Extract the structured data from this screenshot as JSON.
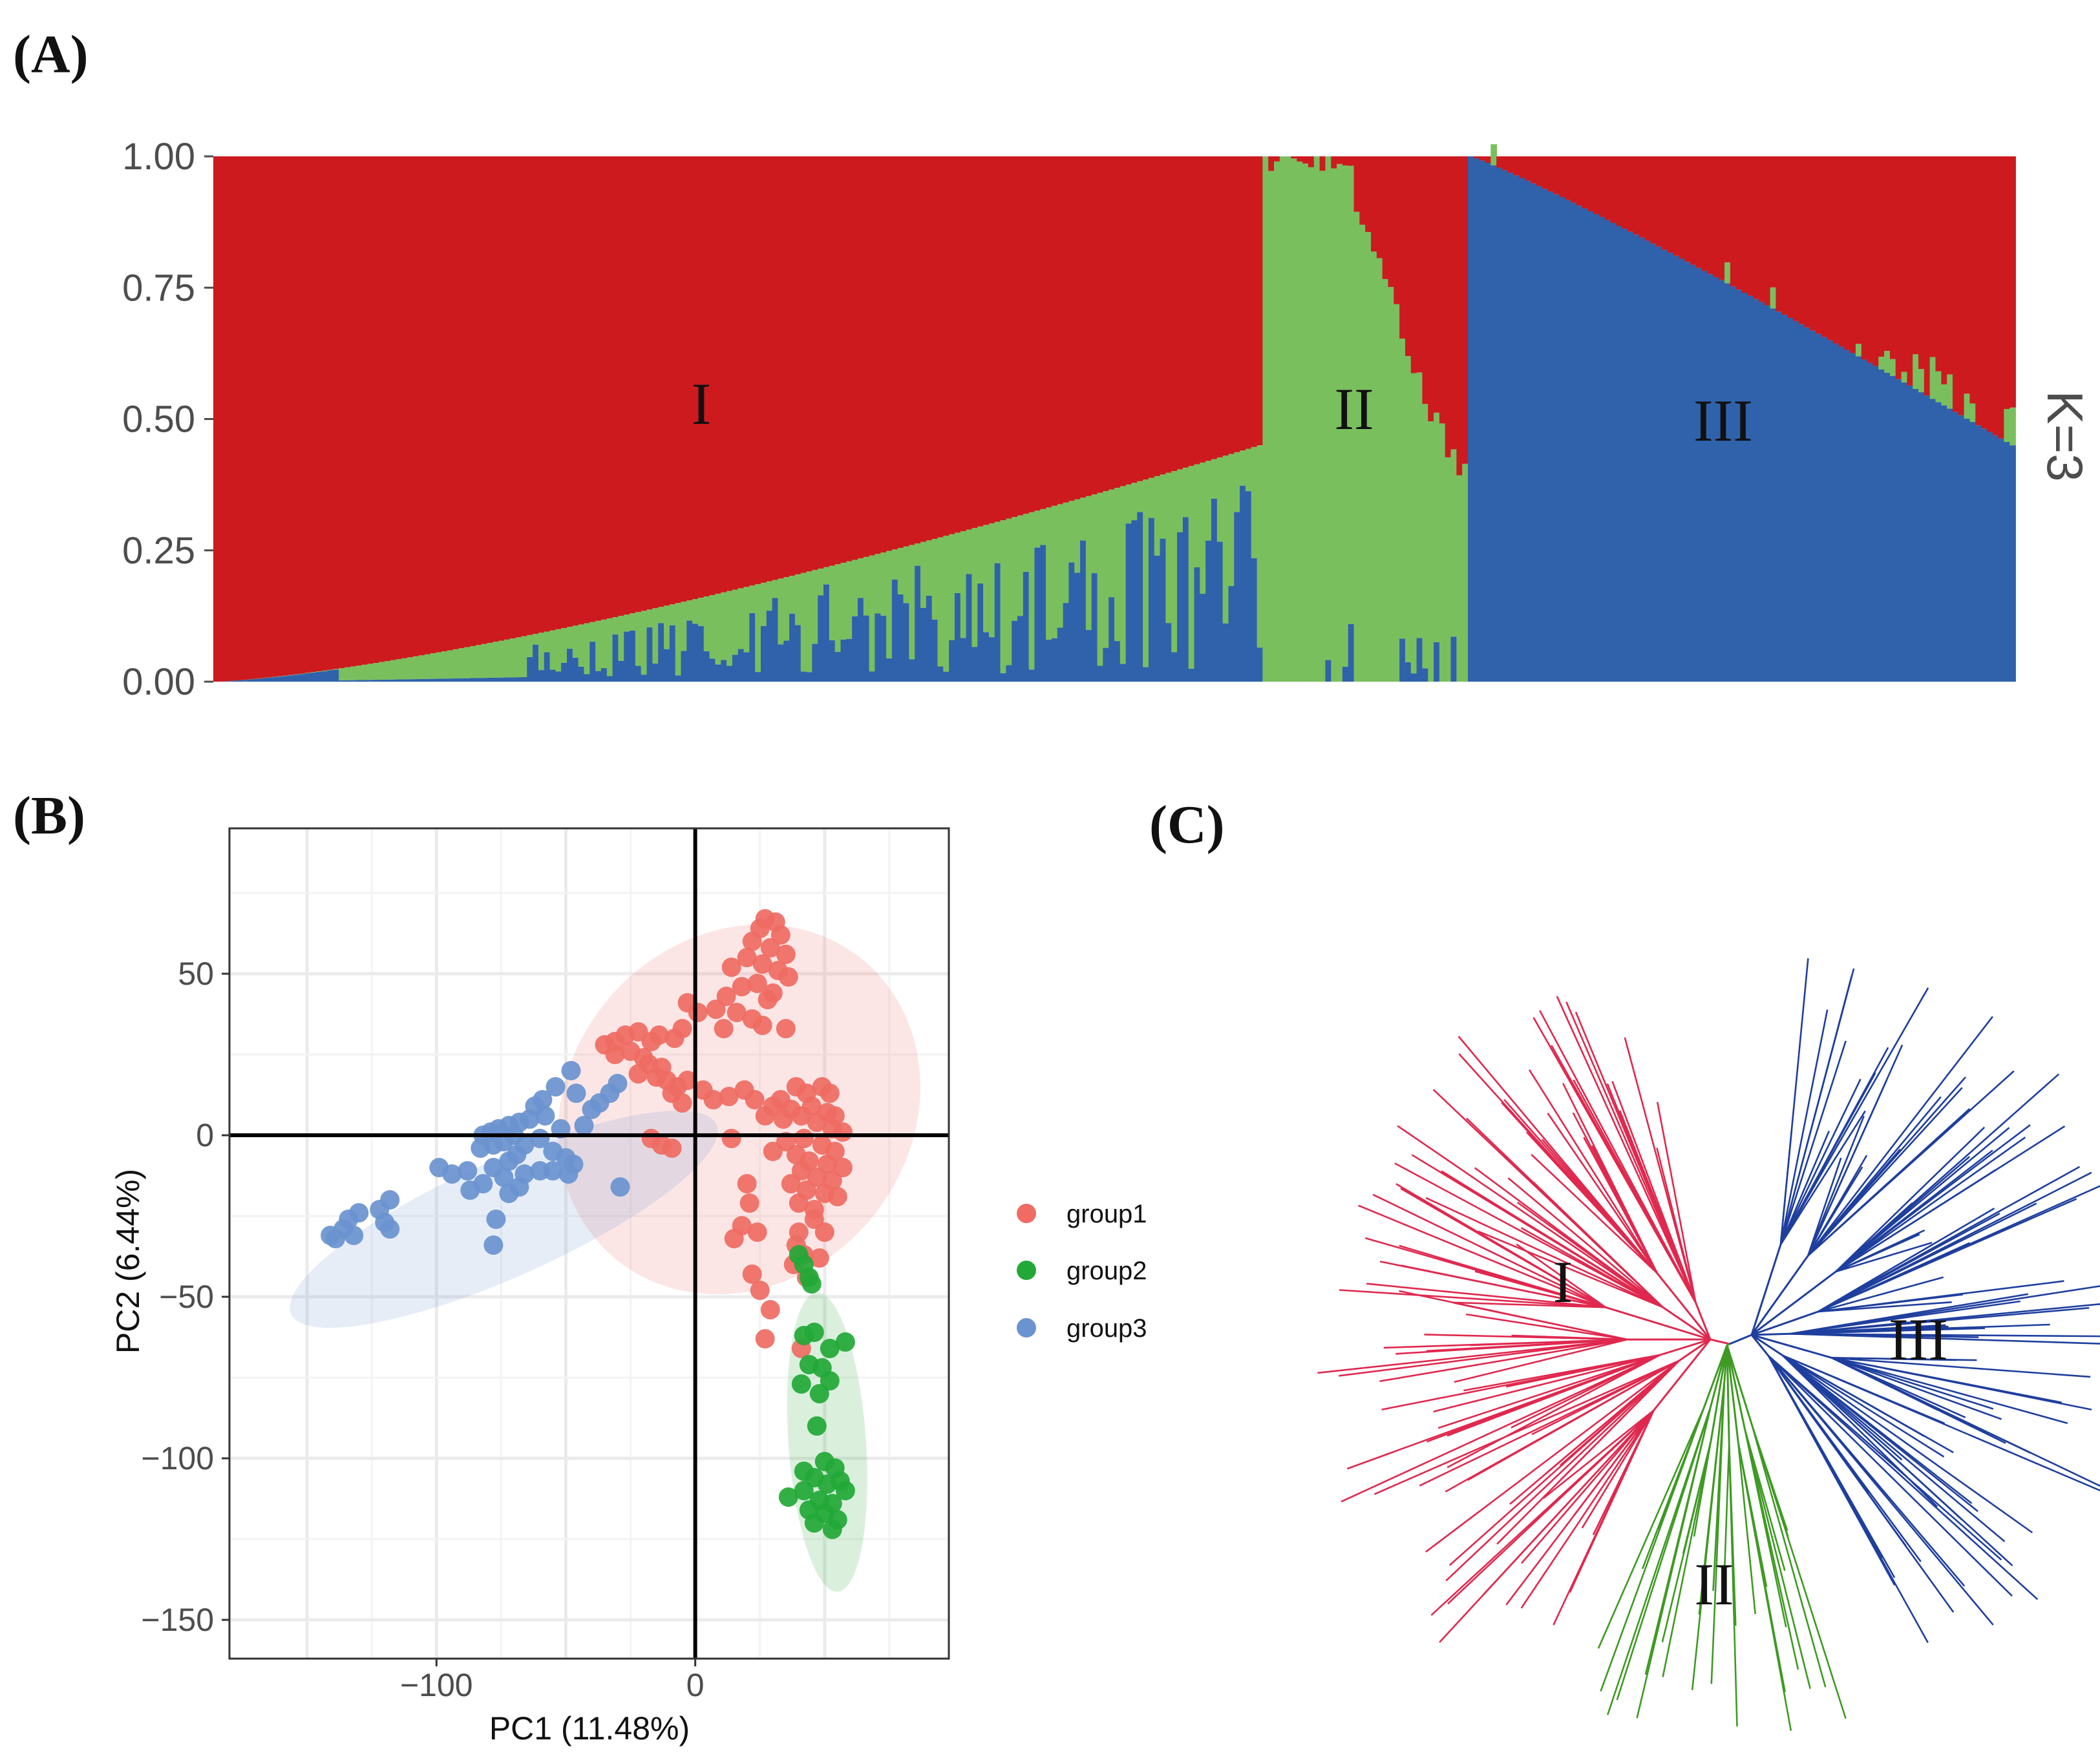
{
  "panels": {
    "a_label": "(A)",
    "b_label": "(B)",
    "c_label": "(C)"
  },
  "colors": {
    "cluster1": "#cc1a1f",
    "cluster2": "#7abf5e",
    "cluster3": "#2f62ab",
    "group1": "#ef6b63",
    "group2": "#22a836",
    "group3": "#6a93cf",
    "tree1": "#e0284e",
    "tree2": "#3e9a22",
    "tree3": "#1f3f9e"
  },
  "chart_data": [
    {
      "id": "structure",
      "type": "bar",
      "stacked": true,
      "title": "",
      "k_label": "K=3",
      "ylim": [
        0,
        1
      ],
      "yticks": [
        {
          "value": 0,
          "label": "0.00"
        },
        {
          "value": 0.25,
          "label": "0.25"
        },
        {
          "value": 0.5,
          "label": "0.50"
        },
        {
          "value": 0.75,
          "label": "0.75"
        },
        {
          "value": 1,
          "label": "1.00"
        }
      ],
      "sample_counts": {
        "group1": 184,
        "group2": 36,
        "group3": 96
      },
      "group_labels": [
        {
          "label": "I",
          "group": "group1"
        },
        {
          "label": "II",
          "group": "group2"
        },
        {
          "label": "III",
          "group": "group3"
        }
      ],
      "series_order": [
        "blue (bottom)",
        "green (middle)",
        "red (top)"
      ]
    },
    {
      "id": "pca",
      "type": "scatter",
      "xlabel": "PC1 (11.48%)",
      "ylabel": "PC2 (6.44%)",
      "xlim": [
        -180,
        98
      ],
      "ylim": [
        -162,
        95
      ],
      "xticks": [
        {
          "value": -100,
          "label": "−100"
        },
        {
          "value": 0,
          "label": "0"
        }
      ],
      "yticks": [
        {
          "value": 50,
          "label": "50"
        },
        {
          "value": 0,
          "label": "0"
        },
        {
          "value": -50,
          "label": "−50"
        },
        {
          "value": -100,
          "label": "−100"
        },
        {
          "value": -150,
          "label": "−150"
        }
      ],
      "legend": [
        {
          "name": "group1",
          "label": "group1"
        },
        {
          "name": "group2",
          "label": "group2"
        },
        {
          "name": "group3",
          "label": "group3"
        }
      ],
      "ellipses": [
        {
          "group": "group1",
          "cx": 17,
          "cy": 8,
          "rx": 75,
          "ry": 53,
          "angle_deg": 50
        },
        {
          "group": "group2",
          "cx": 51,
          "cy": -95,
          "rx": 58,
          "ry": 12,
          "angle_deg": -86
        },
        {
          "group": "group3",
          "cx": -74,
          "cy": -26,
          "rx": 90,
          "ry": 18,
          "angle_deg": 24
        }
      ],
      "series": [
        {
          "name": "group1",
          "points": [
            [
              27,
              67
            ],
            [
              31,
              66
            ],
            [
              25,
              64
            ],
            [
              33,
              62
            ],
            [
              22,
              60
            ],
            [
              29,
              58
            ],
            [
              35,
              56
            ],
            [
              20,
              55
            ],
            [
              26,
              53
            ],
            [
              32,
              51
            ],
            [
              36,
              49
            ],
            [
              14,
              52
            ],
            [
              24,
              47
            ],
            [
              18,
              46
            ],
            [
              30,
              44
            ],
            [
              12,
              43
            ],
            [
              28,
              42
            ],
            [
              -3,
              41
            ],
            [
              1,
              38
            ],
            [
              8,
              39
            ],
            [
              16,
              38
            ],
            [
              22,
              36
            ],
            [
              26,
              34
            ],
            [
              35,
              33
            ],
            [
              11,
              33
            ],
            [
              -5,
              33
            ],
            [
              -8,
              30
            ],
            [
              -14,
              31
            ],
            [
              -17,
              29
            ],
            [
              -22,
              32
            ],
            [
              -27,
              31
            ],
            [
              -31,
              29
            ],
            [
              -35,
              28
            ],
            [
              -31,
              25
            ],
            [
              -25,
              26
            ],
            [
              -20,
              24
            ],
            [
              -18,
              22
            ],
            [
              -13,
              21
            ],
            [
              -22,
              19
            ],
            [
              -15,
              18
            ],
            [
              -11,
              17
            ],
            [
              -7,
              15
            ],
            [
              -3,
              17
            ],
            [
              -9,
              13
            ],
            [
              -5,
              10
            ],
            [
              3,
              14
            ],
            [
              7,
              11
            ],
            [
              13,
              12
            ],
            [
              19,
              14
            ],
            [
              23,
              11
            ],
            [
              39,
              15
            ],
            [
              43,
              13
            ],
            [
              49,
              15
            ],
            [
              52,
              13
            ],
            [
              33,
              11
            ],
            [
              30,
              9
            ],
            [
              37,
              8
            ],
            [
              45,
              9
            ],
            [
              51,
              7
            ],
            [
              54,
              6
            ],
            [
              27,
              6
            ],
            [
              34,
              5
            ],
            [
              41,
              6
            ],
            [
              47,
              4
            ],
            [
              53,
              2
            ],
            [
              57,
              1
            ],
            [
              35,
              -2
            ],
            [
              42,
              -1
            ],
            [
              49,
              -3
            ],
            [
              54,
              -5
            ],
            [
              39,
              -6
            ],
            [
              44,
              -8
            ],
            [
              51,
              -9
            ],
            [
              57,
              -10
            ],
            [
              41,
              -11
            ],
            [
              47,
              -13
            ],
            [
              53,
              -14
            ],
            [
              37,
              -15
            ],
            [
              43,
              -17
            ],
            [
              50,
              -18
            ],
            [
              55,
              -19
            ],
            [
              40,
              -21
            ],
            [
              46,
              -23
            ],
            [
              -17,
              -1
            ],
            [
              -13,
              -3
            ],
            [
              -9,
              -4
            ],
            [
              14,
              -1
            ],
            [
              30,
              -5
            ],
            [
              20,
              -15
            ],
            [
              21,
              -21
            ],
            [
              18,
              -28
            ],
            [
              46,
              -26
            ],
            [
              40,
              -30
            ],
            [
              50,
              -30
            ],
            [
              15,
              -32
            ],
            [
              24,
              -30
            ],
            [
              39,
              -34
            ],
            [
              42,
              -37
            ],
            [
              48,
              -38
            ],
            [
              22,
              -43
            ],
            [
              25,
              -48
            ],
            [
              29,
              -54
            ],
            [
              27,
              -63
            ],
            [
              41,
              -66
            ],
            [
              43,
              -44
            ],
            [
              38,
              -40
            ]
          ]
        },
        {
          "name": "group2",
          "points": [
            [
              42,
              -40
            ],
            [
              44,
              -44
            ],
            [
              40,
              -37
            ],
            [
              45,
              -46
            ],
            [
              42,
              -62
            ],
            [
              46,
              -61
            ],
            [
              52,
              -66
            ],
            [
              58,
              -64
            ],
            [
              44,
              -71
            ],
            [
              49,
              -72
            ],
            [
              41,
              -77
            ],
            [
              48,
              -80
            ],
            [
              52,
              -76
            ],
            [
              47,
              -90
            ],
            [
              50,
              -101
            ],
            [
              54,
              -103
            ],
            [
              46,
              -106
            ],
            [
              51,
              -108
            ],
            [
              56,
              -107
            ],
            [
              58,
              -110
            ],
            [
              42,
              -110
            ],
            [
              36,
              -112
            ],
            [
              48,
              -113
            ],
            [
              53,
              -114
            ],
            [
              44,
              -116
            ],
            [
              50,
              -117
            ],
            [
              55,
              -119
            ],
            [
              46,
              -120
            ],
            [
              53,
              -122
            ],
            [
              42,
              -104
            ]
          ]
        },
        {
          "name": "group3",
          "points": [
            [
              -48,
              20
            ],
            [
              -46,
              13
            ],
            [
              -54,
              15
            ],
            [
              -59,
              11
            ],
            [
              -62,
              9
            ],
            [
              -58,
              6
            ],
            [
              -64,
              5
            ],
            [
              -68,
              4
            ],
            [
              -72,
              3
            ],
            [
              -76,
              2
            ],
            [
              -79,
              1
            ],
            [
              -82,
              0
            ],
            [
              -70,
              0
            ],
            [
              -60,
              -1
            ],
            [
              -74,
              -2
            ],
            [
              -78,
              -3
            ],
            [
              -66,
              -3
            ],
            [
              -83,
              -4
            ],
            [
              -69,
              -6
            ],
            [
              -55,
              -5
            ],
            [
              -50,
              -7
            ],
            [
              -47,
              -9
            ],
            [
              -72,
              -8
            ],
            [
              -78,
              -10
            ],
            [
              -88,
              -11
            ],
            [
              -94,
              -12
            ],
            [
              -99,
              -10
            ],
            [
              -60,
              -11
            ],
            [
              -66,
              -12
            ],
            [
              -74,
              -13
            ],
            [
              -82,
              -15
            ],
            [
              -87,
              -17
            ],
            [
              -55,
              -11
            ],
            [
              -49,
              -12
            ],
            [
              -68,
              -16
            ],
            [
              -72,
              -18
            ],
            [
              -118,
              -20
            ],
            [
              -122,
              -23
            ],
            [
              -120,
              -27
            ],
            [
              -118,
              -29
            ],
            [
              -130,
              -24
            ],
            [
              -134,
              -26
            ],
            [
              -136,
              -29
            ],
            [
              -132,
              -31
            ],
            [
              -139,
              -32
            ],
            [
              -141,
              -31
            ],
            [
              -77,
              -26
            ],
            [
              -78,
              -34
            ],
            [
              -29,
              -16
            ],
            [
              -40,
              8
            ],
            [
              -37,
              10
            ],
            [
              -33,
              13
            ],
            [
              -30,
              16
            ],
            [
              -43,
              3
            ],
            [
              -52,
              2
            ]
          ]
        }
      ]
    },
    {
      "id": "tree",
      "type": "other",
      "description_kind": "unrooted phylogenetic tree",
      "clade_labels": [
        {
          "label": "I",
          "group": "group1"
        },
        {
          "label": "II",
          "group": "group2"
        },
        {
          "label": "III",
          "group": "group3"
        }
      ],
      "clades": [
        {
          "group": "group1",
          "tips": 106,
          "angle_from_deg": 103,
          "angle_to_deg": 240
        },
        {
          "group": "group2",
          "tips": 30,
          "angle_from_deg": 247,
          "angle_to_deg": 290
        },
        {
          "group": "group3",
          "tips": 100,
          "angle_from_deg": 300,
          "angle_to_deg": 441
        }
      ]
    }
  ]
}
